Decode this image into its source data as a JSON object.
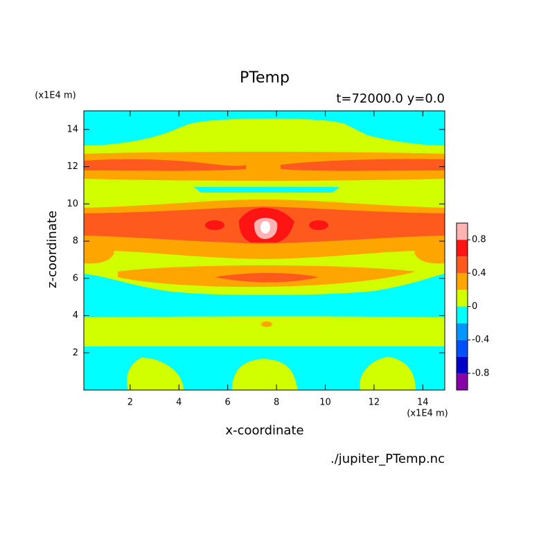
{
  "chart_data": {
    "type": "contour",
    "title": "PTemp",
    "subtitle": "t=72000.0 y=0.0",
    "xlabel": "x-coordinate",
    "ylabel": "z-coordinate",
    "x_unit": "(x1E4 m)",
    "y_unit": "(x1E4 m)",
    "source": "./jupiter_PTemp.nc",
    "xlim": [
      0.1,
      14.9
    ],
    "ylim": [
      0,
      15
    ],
    "xticks": [
      2,
      4,
      6,
      8,
      10,
      12,
      14
    ],
    "yticks": [
      2,
      4,
      6,
      8,
      10,
      12,
      14
    ],
    "levels": [
      -1,
      -0.8,
      -0.6,
      -0.4,
      -0.2,
      0,
      0.2,
      0.4,
      0.6,
      0.8,
      1
    ],
    "colors": [
      "#8a00a8",
      "#0000c8",
      "#0050ff",
      "#0096ff",
      "#00ffff",
      "#d2ff00",
      "#ffa500",
      "#ff5a1e",
      "#ff1414",
      "#ffb4b4"
    ],
    "over_color": "#ffffff",
    "colorbar_ticks": [
      -0.8,
      -0.4,
      0,
      0.4,
      0.8
    ]
  }
}
